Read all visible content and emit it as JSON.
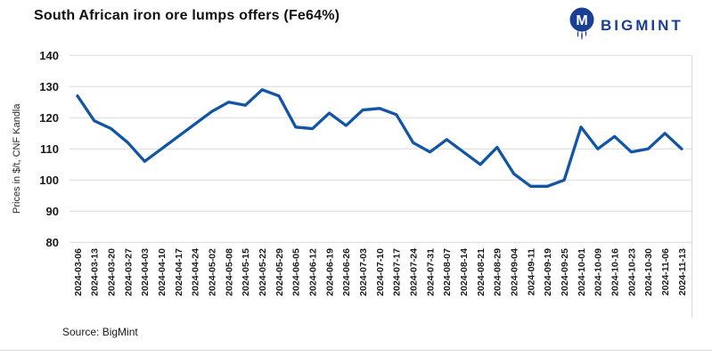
{
  "header": {
    "title": "South African iron ore lumps offers (Fe64%)",
    "brand": {
      "name": "BIGMINT",
      "color": "#1b3e95"
    }
  },
  "source_note": "Source: BigMint",
  "chart_data": {
    "type": "line",
    "title": "South African iron ore lumps offers (Fe64%)",
    "xlabel": "",
    "ylabel": "Prices in $/t, CNF Kandla",
    "ylim": [
      80,
      140
    ],
    "ytick_step": 10,
    "grid": "horizontal",
    "legend": "none",
    "line_color": "#1155a5",
    "grid_color": "#d9d9d9",
    "categories": [
      "2024-03-06",
      "2024-03-13",
      "2024-03-20",
      "2024-03-27",
      "2024-04-03",
      "2024-04-10",
      "2024-04-17",
      "2024-04-24",
      "2024-05-02",
      "2024-05-08",
      "2024-05-15",
      "2024-05-22",
      "2024-05-29",
      "2024-06-05",
      "2024-06-12",
      "2024-06-19",
      "2024-06-26",
      "2024-07-03",
      "2024-07-10",
      "2024-07-17",
      "2024-07-24",
      "2024-07-31",
      "2024-08-07",
      "2024-08-14",
      "2024-08-21",
      "2024-08-29",
      "2024-09-04",
      "2024-09-11",
      "2024-09-19",
      "2024-09-25",
      "2024-10-01",
      "2024-10-09",
      "2024-10-16",
      "2024-10-23",
      "2024-10-30",
      "2024-11-06",
      "2024-11-13"
    ],
    "values": [
      127,
      119,
      116.5,
      112,
      106,
      110,
      114,
      118,
      122,
      125,
      124,
      129,
      127,
      117,
      116.5,
      121.5,
      117.5,
      122.5,
      123,
      121,
      112,
      109,
      113,
      109,
      105,
      110.5,
      102,
      98,
      98,
      100,
      117,
      110,
      114,
      109,
      110,
      115,
      110
    ]
  }
}
